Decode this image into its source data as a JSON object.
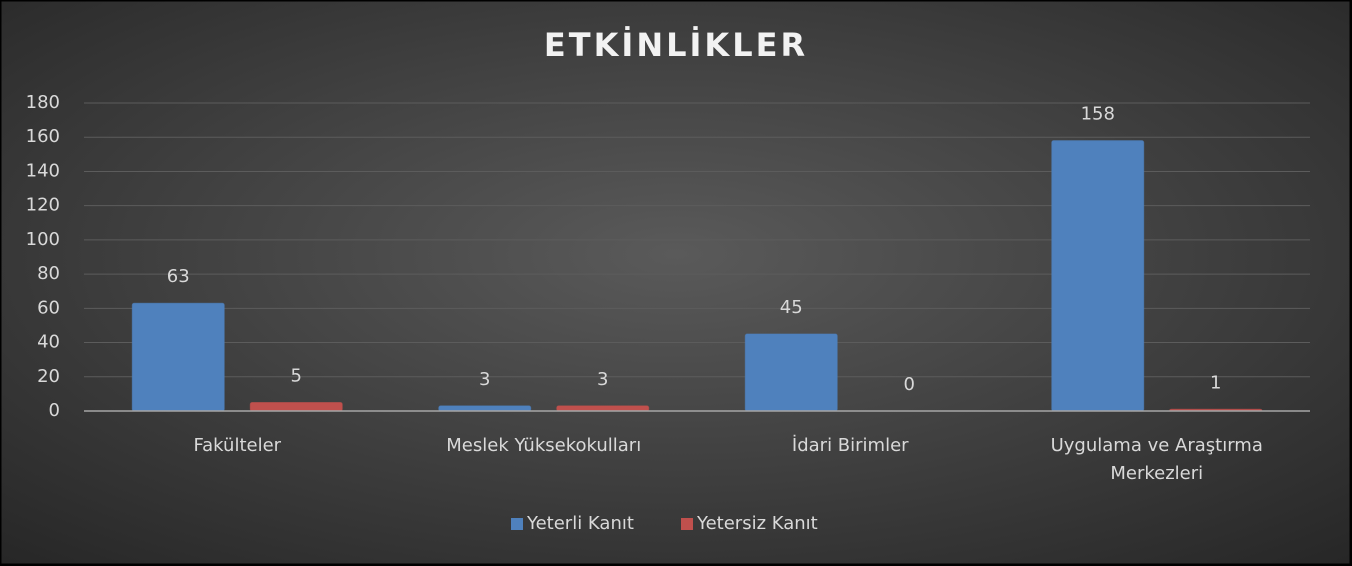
{
  "chart_data": {
    "type": "bar",
    "title": "ETKİNLİKLER",
    "categories": [
      "Fakülteler",
      "Meslek Yüksekokulları",
      "İdari Birimler",
      "Uygulama ve Araştırma Merkezleri"
    ],
    "series": [
      {
        "name": "Yeterli Kanıt",
        "color": "#4f81bd",
        "values": [
          63,
          3,
          45,
          158
        ]
      },
      {
        "name": "Yetersiz Kanıt",
        "color": "#c0504d",
        "values": [
          5,
          3,
          0,
          1
        ]
      }
    ],
    "ylim": [
      0,
      180
    ],
    "yticks": [
      0,
      20,
      40,
      60,
      80,
      100,
      120,
      140,
      160,
      180
    ],
    "grid": true,
    "legend": "bottom"
  }
}
